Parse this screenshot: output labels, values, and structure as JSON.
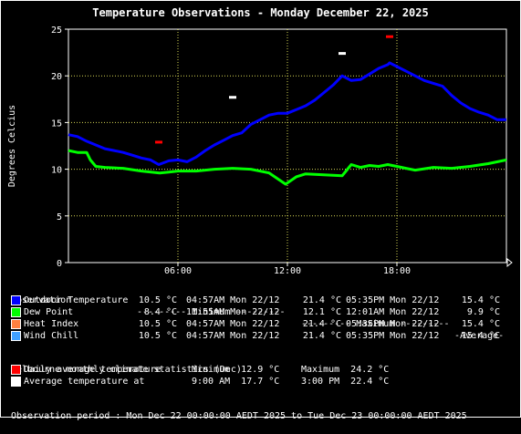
{
  "title": "Temperature Observations - Monday December 22, 2025",
  "ylabel": "Degrees Celcius",
  "chart_data": {
    "type": "line",
    "title": "Temperature Observations - Monday December 22, 2025",
    "ylabel": "Degrees Celcius",
    "xlabel": "",
    "xlim": [
      0,
      24
    ],
    "ylim": [
      0,
      25
    ],
    "x_ticks": [
      "06:00",
      "12:00",
      "18:00"
    ],
    "x_tick_values": [
      6,
      12,
      18
    ],
    "y_ticks": [
      "0",
      "5",
      "10",
      "15",
      "20",
      "25"
    ],
    "grid": true,
    "series": [
      {
        "name": "Outdoor Temperature",
        "color": "#0000ff",
        "x": [
          0,
          0.5,
          1,
          1.5,
          2,
          2.5,
          3,
          3.5,
          4,
          4.5,
          4.95,
          5.5,
          6,
          6.5,
          7,
          7.5,
          8,
          8.5,
          9,
          9.5,
          10,
          10.5,
          11,
          11.5,
          12,
          12.5,
          13,
          13.5,
          14,
          14.5,
          15,
          15.5,
          16,
          16.5,
          17,
          17.5,
          17.6,
          18,
          18.5,
          19,
          19.5,
          20,
          20.5,
          21,
          21.5,
          22,
          22.5,
          23,
          23.5,
          24
        ],
        "y": [
          13.7,
          13.5,
          13.0,
          12.6,
          12.2,
          12.0,
          11.8,
          11.5,
          11.2,
          11.0,
          10.5,
          10.9,
          11.0,
          10.8,
          11.3,
          12.0,
          12.6,
          13.1,
          13.6,
          13.9,
          14.8,
          15.3,
          15.8,
          16.0,
          16.0,
          16.4,
          16.8,
          17.4,
          18.2,
          19.0,
          20.0,
          19.5,
          19.6,
          20.2,
          20.8,
          21.2,
          21.4,
          21.0,
          20.5,
          20.0,
          19.5,
          19.2,
          18.9,
          17.9,
          17.1,
          16.5,
          16.1,
          15.8,
          15.3,
          15.3
        ]
      },
      {
        "name": "Dew Point",
        "color": "#00ff00",
        "x": [
          0,
          0.5,
          1,
          1.2,
          1.5,
          2,
          3,
          4,
          5,
          5.5,
          6,
          7,
          8,
          9,
          10,
          11,
          11.9,
          12.5,
          13,
          14,
          15,
          15.5,
          16,
          16.5,
          17,
          17.5,
          18,
          18.5,
          19,
          20,
          21,
          22,
          23,
          24
        ],
        "y": [
          12.0,
          11.8,
          11.8,
          11.0,
          10.3,
          10.2,
          10.1,
          9.8,
          9.6,
          9.7,
          9.8,
          9.8,
          10.0,
          10.1,
          10.0,
          9.6,
          8.4,
          9.2,
          9.5,
          9.4,
          9.3,
          10.5,
          10.2,
          10.4,
          10.3,
          10.5,
          10.3,
          10.1,
          9.9,
          10.2,
          10.1,
          10.3,
          10.6,
          11.0
        ]
      }
    ],
    "markers": [
      {
        "name": "Daily average temperature",
        "color": "#ff0000",
        "x": [
          4.95,
          17.6
        ],
        "y": [
          12.9,
          24.2
        ]
      },
      {
        "name": "Average temperature",
        "color": "#ffffff",
        "x": [
          9.0,
          15.0
        ],
        "y": [
          17.7,
          22.4
        ]
      }
    ]
  },
  "legend": {
    "header": {
      "observation": "Observation",
      "minimum": "--------- Minimum ---------",
      "maximum": "--------- Maximum ---------",
      "average": "-Average-"
    },
    "rows": [
      {
        "label": "Outdoor Temperature",
        "color": "#0000ff",
        "min_val": "10.5 °C",
        "min_when": "04:57AM Mon 22/12",
        "max_val": "21.4 °C",
        "max_when": "05:35PM Mon 22/12",
        "avg": "15.4 °C"
      },
      {
        "label": "Dew Point",
        "color": "#00ff00",
        "min_val": "8.4 °C",
        "min_when": "11:55AM Mon 22/12",
        "max_val": "12.1 °C",
        "max_when": "12:01AM Mon 22/12",
        "avg": "9.9 °C"
      },
      {
        "label": "Heat Index",
        "color": "#ff8040",
        "min_val": "10.5 °C",
        "min_when": "04:57AM Mon 22/12",
        "max_val": "21.4 °C",
        "max_when": "05:35PM Mon 22/12",
        "avg": "15.4 °C"
      },
      {
        "label": "Wind Chill",
        "color": "#40a0ff",
        "min_val": "10.5 °C",
        "min_when": "04:57AM Mon 22/12",
        "max_val": "21.4 °C",
        "max_when": "05:35PM Mon 22/12",
        "avg": "15.4 °C"
      }
    ]
  },
  "climate": {
    "title": "Melbourne monthly climate statistics (Dec)",
    "rows": [
      {
        "label": "Daily average temperature",
        "color": "#ff0000",
        "left": "Minimum  12.9 °C",
        "right": "Maximum  24.2 °C"
      },
      {
        "label": "Average temperature at",
        "color": "#ffffff",
        "left": "9:00 AM  17.7 °C",
        "right": "3:00 PM  22.4 °C"
      }
    ]
  },
  "period": "Observation period : Mon Dec 22 00:00:00 AEDT 2025 to Tue Dec 23 00:00:00 AEDT 2025"
}
